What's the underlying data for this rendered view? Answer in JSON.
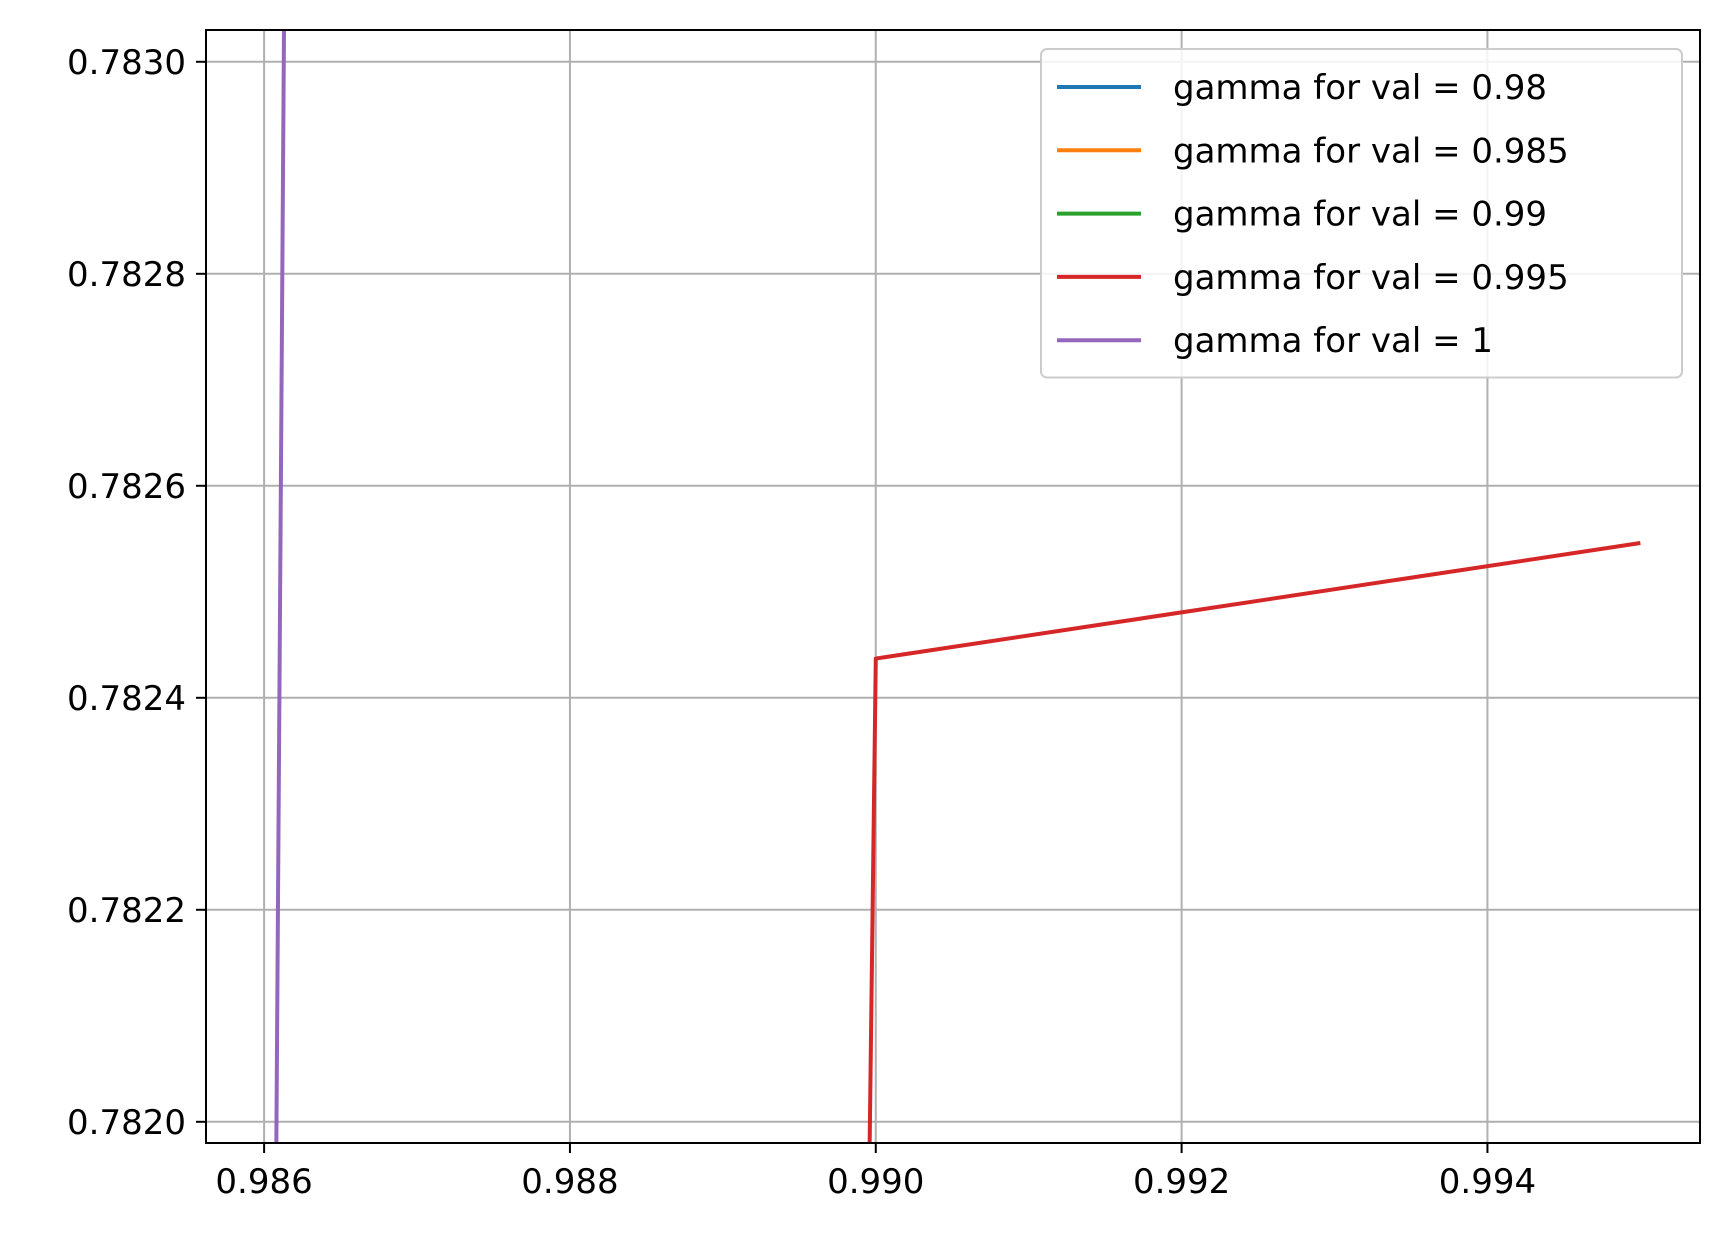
{
  "chart_data": {
    "type": "line",
    "title": "",
    "xlabel": "",
    "ylabel": "",
    "xlim": [
      0.98562,
      0.99539
    ],
    "ylim": [
      0.78198,
      0.78303
    ],
    "x_ticks": [
      0.986,
      0.988,
      0.99,
      0.992,
      0.994
    ],
    "x_tick_labels": [
      "0.986",
      "0.988",
      "0.990",
      "0.992",
      "0.994"
    ],
    "y_ticks": [
      0.782,
      0.7822,
      0.7824,
      0.7826,
      0.7828,
      0.783
    ],
    "y_tick_labels": [
      "0.7820",
      "0.7822",
      "0.7824",
      "0.7826",
      "0.7828",
      "0.7830"
    ],
    "grid": true,
    "legend_position": "top-right",
    "series": [
      {
        "name": "gamma for val = 0.98",
        "color": "#1f77b4",
        "x": [],
        "y": []
      },
      {
        "name": "gamma for val = 0.985",
        "color": "#ff7f0e",
        "x": [],
        "y": []
      },
      {
        "name": "gamma for val = 0.99",
        "color": "#2ca02c",
        "x": [],
        "y": []
      },
      {
        "name": "gamma for val = 0.995",
        "color": "#d62728",
        "x": [
          0.98996,
          0.99,
          0.995
        ],
        "y": [
          0.78198,
          0.782437,
          0.782546
        ]
      },
      {
        "name": "gamma for val = 1",
        "color": "#9467bd",
        "x": [
          0.98608,
          0.98613
        ],
        "y": [
          0.78198,
          0.78303
        ]
      }
    ]
  }
}
